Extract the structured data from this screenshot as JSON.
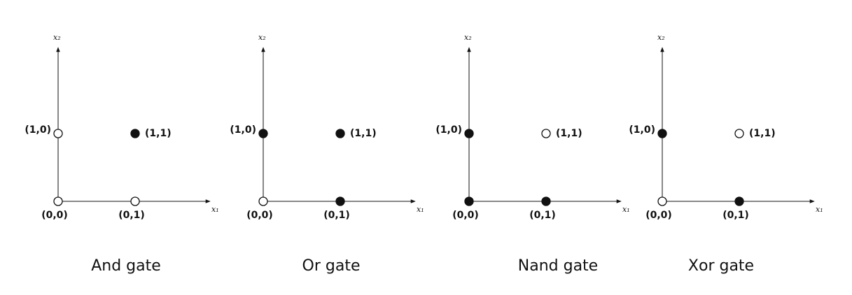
{
  "panels": [
    {
      "title": "And gate",
      "x_axis": "x₁",
      "y_axis": "x₂",
      "points": [
        {
          "label": "(0,0)",
          "filled": false
        },
        {
          "label": "(0,1)",
          "filled": false
        },
        {
          "label": "(1,0)",
          "filled": false
        },
        {
          "label": "(1,1)",
          "filled": true
        }
      ]
    },
    {
      "title": "Or gate",
      "x_axis": "x₁",
      "y_axis": "x₂",
      "points": [
        {
          "label": "(0,0)",
          "filled": false
        },
        {
          "label": "(0,1)",
          "filled": true
        },
        {
          "label": "(1,0)",
          "filled": true
        },
        {
          "label": "(1,1)",
          "filled": true
        }
      ]
    },
    {
      "title": "Nand gate",
      "x_axis": "x₁",
      "y_axis": "x₂",
      "points": [
        {
          "label": "(0,0)",
          "filled": true
        },
        {
          "label": "(0,1)",
          "filled": true
        },
        {
          "label": "(1,0)",
          "filled": true
        },
        {
          "label": "(1,1)",
          "filled": false
        }
      ]
    },
    {
      "title": "Xor gate",
      "x_axis": "x₁",
      "y_axis": "x₂",
      "points": [
        {
          "label": "(0,0)",
          "filled": false
        },
        {
          "label": "(0,1)",
          "filled": true
        },
        {
          "label": "(1,0)",
          "filled": true
        },
        {
          "label": "(1,1)",
          "filled": false
        }
      ]
    }
  ]
}
